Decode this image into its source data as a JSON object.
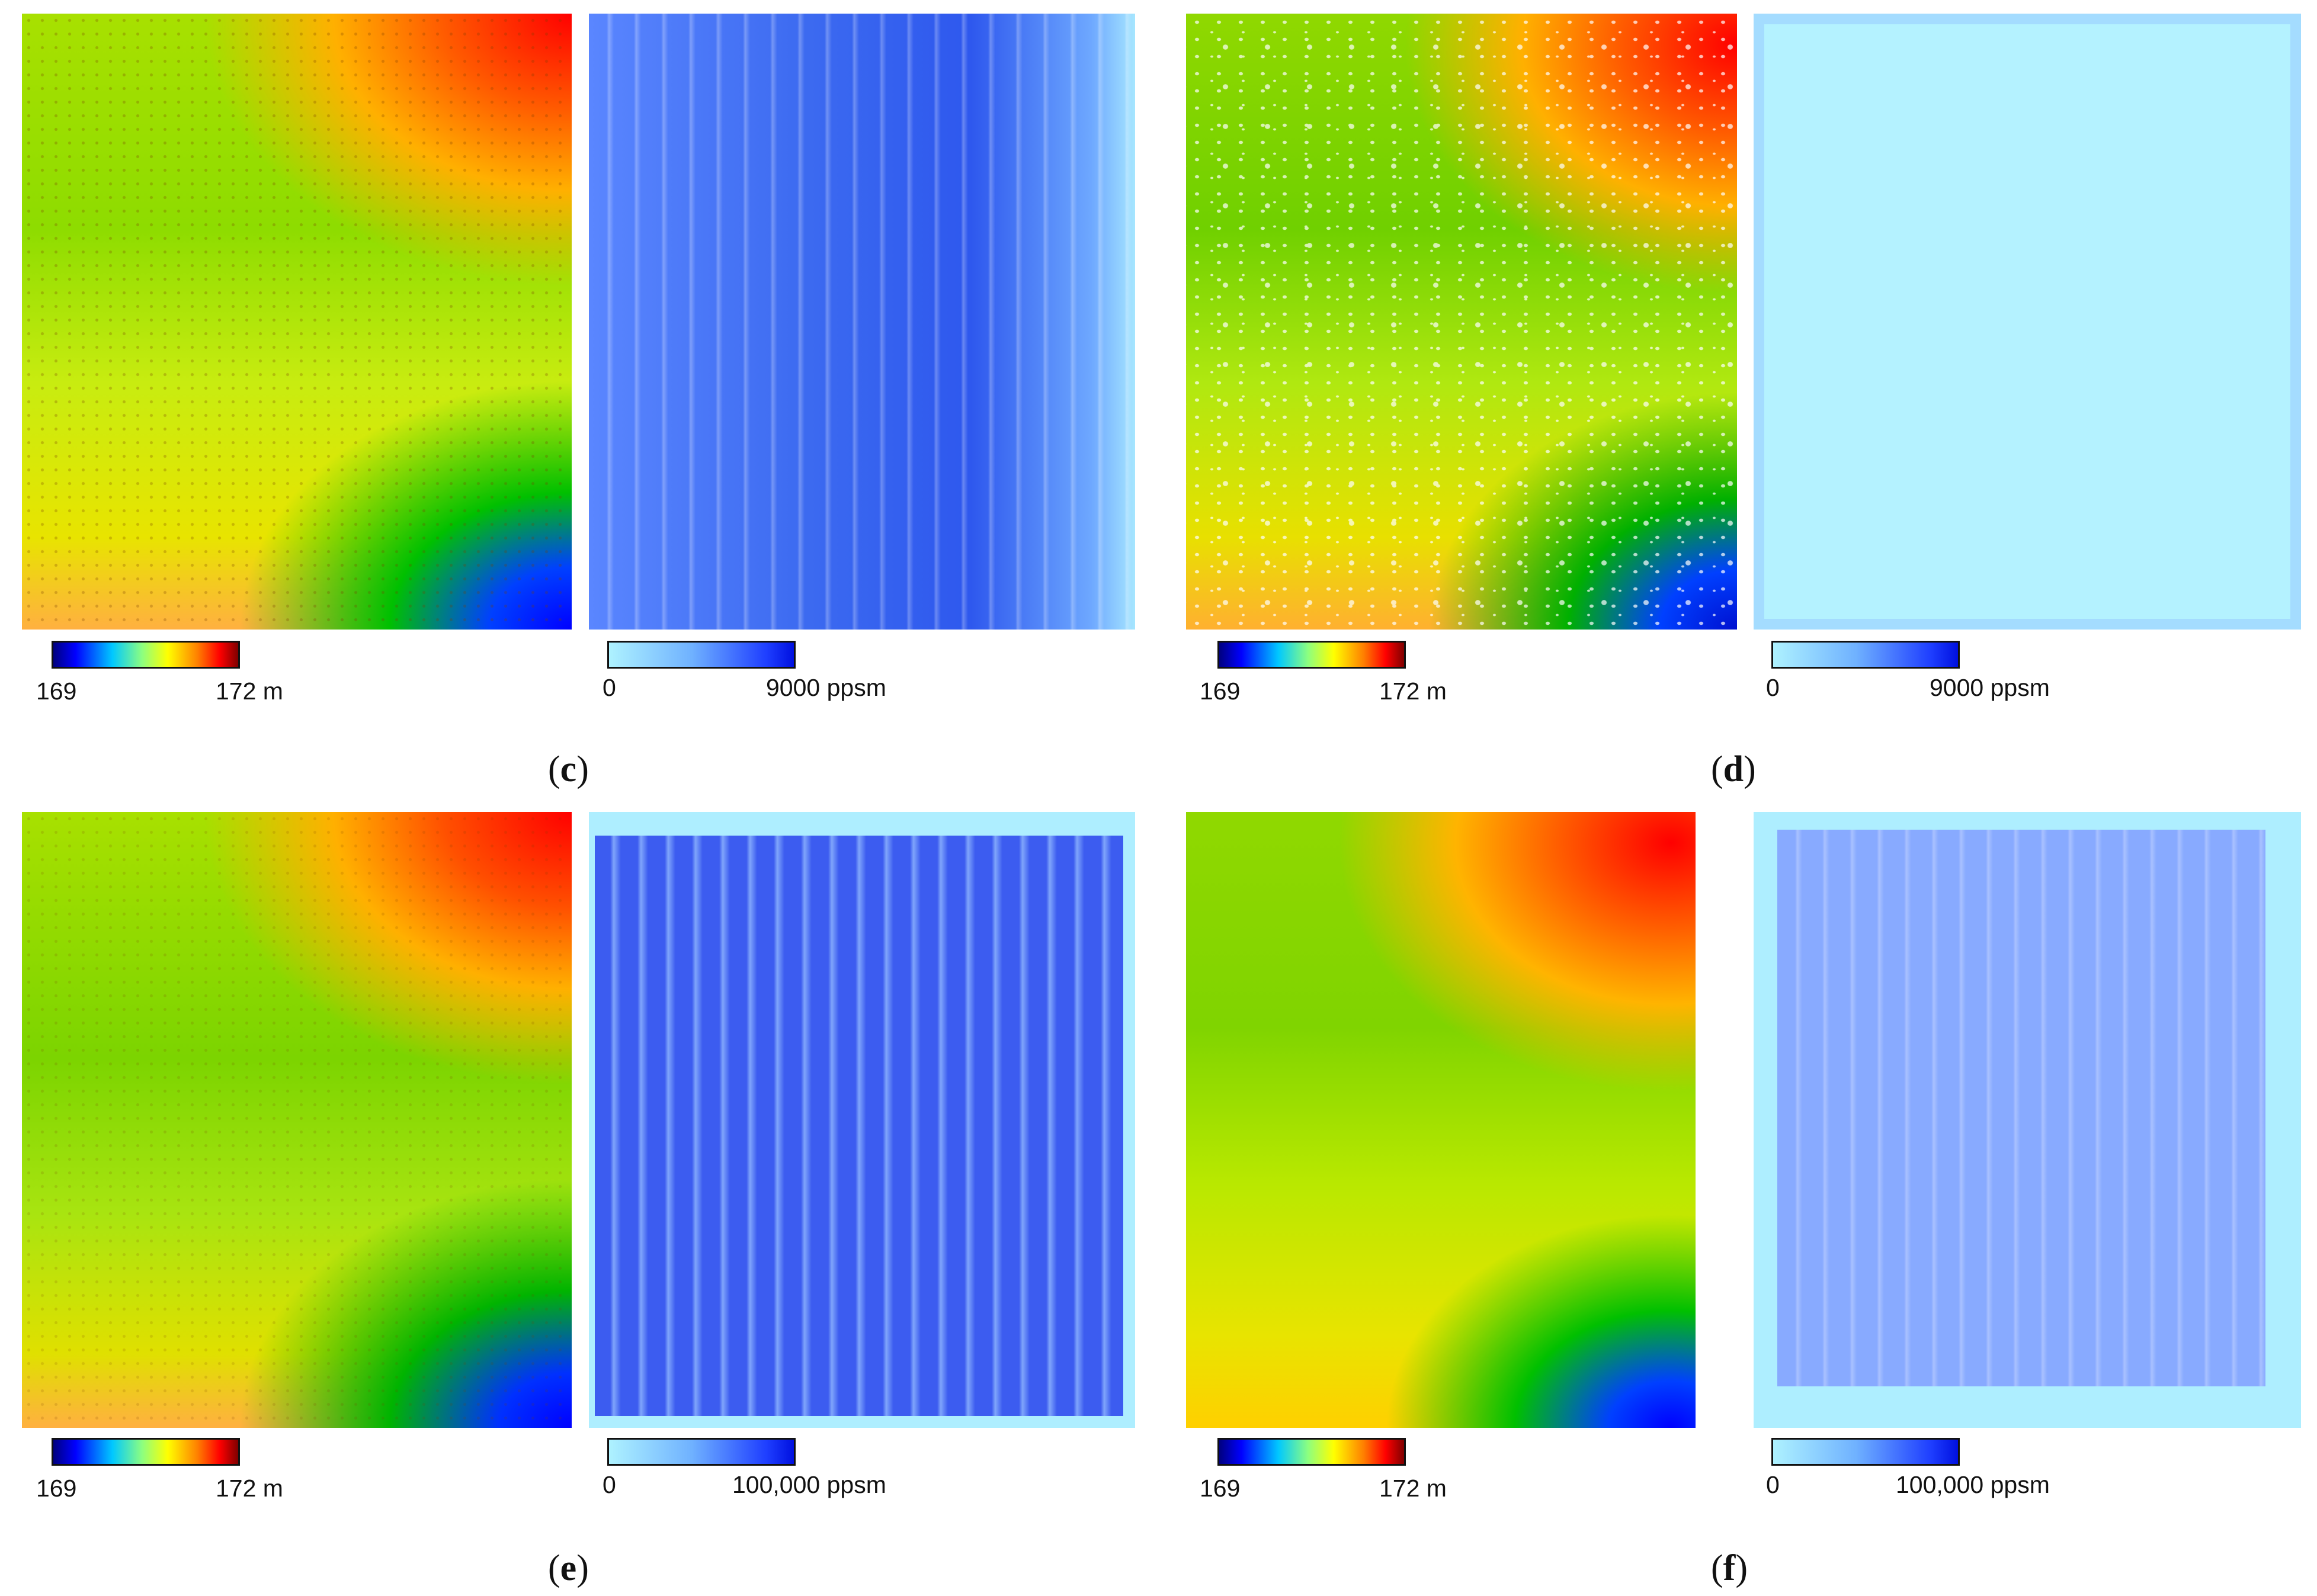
{
  "panels": [
    {
      "id": "c",
      "caption_open": "(",
      "caption_letter": "c",
      "caption_close": ")",
      "elevation_scale": {
        "min": "169",
        "max": "172 m"
      },
      "density_scale": {
        "min": "0",
        "max": "9000 ppsm"
      }
    },
    {
      "id": "d",
      "caption_open": "(",
      "caption_letter": "d",
      "caption_close": ")",
      "elevation_scale": {
        "min": "169",
        "max": "172 m"
      },
      "density_scale": {
        "min": "0",
        "max": "9000 ppsm"
      }
    },
    {
      "id": "e",
      "caption_open": "(",
      "caption_letter": "e",
      "caption_close": ")",
      "elevation_scale": {
        "min": "169",
        "max": "172 m"
      },
      "density_scale": {
        "min": "0",
        "max": "100,000 ppsm"
      }
    },
    {
      "id": "f",
      "caption_open": "(",
      "caption_letter": "f",
      "caption_close": ")",
      "elevation_scale": {
        "min": "169",
        "max": "172 m"
      },
      "density_scale": {
        "min": "0",
        "max": "100,000 ppsm"
      }
    }
  ],
  "colors": {
    "elevation_low": "#0000ff",
    "elevation_mid": "#ffff00",
    "elevation_high": "#ff0000",
    "density_low": "#aef2ff",
    "density_high": "#0010e0"
  }
}
